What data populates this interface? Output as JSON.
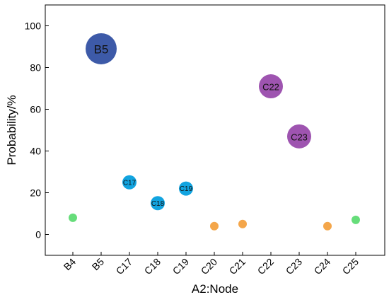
{
  "chart_data": {
    "type": "scatter",
    "xlabel": "A2:Node",
    "ylabel": "Probability/%",
    "categories": [
      "B4",
      "B5",
      "C17",
      "C18",
      "C19",
      "C20",
      "C21",
      "C22",
      "C23",
      "C24",
      "C25"
    ],
    "values": [
      8,
      89,
      25,
      15,
      22,
      4,
      5,
      71,
      47,
      4,
      7
    ],
    "point_labels": [
      "",
      "B5",
      "C17",
      "C18",
      "C19",
      "",
      "",
      "C22",
      "C23",
      "",
      ""
    ],
    "size_level": [
      1,
      4,
      2,
      2,
      2,
      1,
      1,
      3,
      3,
      1,
      1
    ],
    "colors": [
      "#66dd7a",
      "#3d5aa8",
      "#12a4e0",
      "#12a4e0",
      "#12a4e0",
      "#f4a64a",
      "#f4a64a",
      "#9e54b0",
      "#9e54b0",
      "#f4a64a",
      "#66dd7a"
    ],
    "yticks": [
      0,
      20,
      40,
      60,
      80,
      100
    ],
    "ylim": [
      -10,
      110
    ],
    "grid": false,
    "legend": "none"
  }
}
